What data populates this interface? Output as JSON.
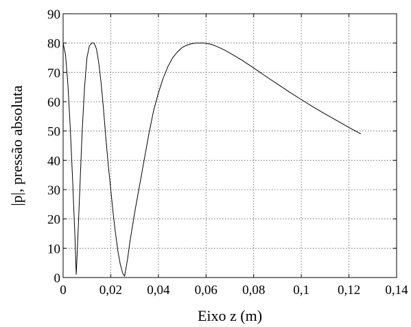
{
  "chart_data": {
    "type": "line",
    "title": "",
    "xlabel": "Eixo z (m)",
    "ylabel": "|p|, pressão absoluta",
    "xlim": [
      0,
      0.14
    ],
    "ylim": [
      0,
      90
    ],
    "grid": true,
    "legend": "none",
    "x_ticks": [
      {
        "value": 0,
        "label": "0"
      },
      {
        "value": 0.02,
        "label": "0,02"
      },
      {
        "value": 0.04,
        "label": "0,04"
      },
      {
        "value": 0.06,
        "label": "0,06"
      },
      {
        "value": 0.08,
        "label": "0,08"
      },
      {
        "value": 0.1,
        "label": "0,1"
      },
      {
        "value": 0.12,
        "label": "0,12"
      },
      {
        "value": 0.14,
        "label": "0,14"
      }
    ],
    "y_ticks": [
      {
        "value": 0,
        "label": "0"
      },
      {
        "value": 10,
        "label": "10"
      },
      {
        "value": 20,
        "label": "20"
      },
      {
        "value": 30,
        "label": "30"
      },
      {
        "value": 40,
        "label": "40"
      },
      {
        "value": 50,
        "label": "50"
      },
      {
        "value": 60,
        "label": "60"
      },
      {
        "value": 70,
        "label": "70"
      },
      {
        "value": 80,
        "label": "80"
      },
      {
        "value": 90,
        "label": "90"
      }
    ],
    "series": [
      {
        "color": "#000000",
        "x": [
          0,
          0.001,
          0.002,
          0.003,
          0.004,
          0.005,
          0.0055,
          0.006,
          0.007,
          0.008,
          0.009,
          0.01,
          0.011,
          0.012,
          0.013,
          0.014,
          0.015,
          0.016,
          0.017,
          0.018,
          0.019,
          0.02,
          0.021,
          0.022,
          0.023,
          0.024,
          0.025,
          0.0258,
          0.027,
          0.028,
          0.029,
          0.03,
          0.032,
          0.034,
          0.036,
          0.038,
          0.04,
          0.042,
          0.044,
          0.046,
          0.048,
          0.05,
          0.052,
          0.054,
          0.056,
          0.058,
          0.059,
          0.06,
          0.062,
          0.064,
          0.066,
          0.068,
          0.07,
          0.075,
          0.08,
          0.085,
          0.09,
          0.095,
          0.1,
          0.105,
          0.11,
          0.115,
          0.12,
          0.125
        ],
        "y": [
          80,
          76,
          66,
          51,
          33,
          13,
          1,
          10,
          30,
          50,
          65,
          75,
          79,
          80,
          80,
          78,
          73,
          66,
          57,
          47,
          38,
          30,
          22,
          15,
          9,
          4.5,
          1.5,
          0.5,
          6,
          12,
          17,
          22,
          31,
          40,
          49,
          57,
          63,
          68,
          72,
          75,
          77,
          78.5,
          79.3,
          79.8,
          80,
          80,
          80,
          79.9,
          79.6,
          79,
          78.3,
          77.5,
          76.6,
          74.2,
          71.5,
          68.7,
          66,
          63.3,
          60.7,
          58.2,
          55.8,
          53.5,
          51.2,
          49
        ]
      }
    ]
  }
}
